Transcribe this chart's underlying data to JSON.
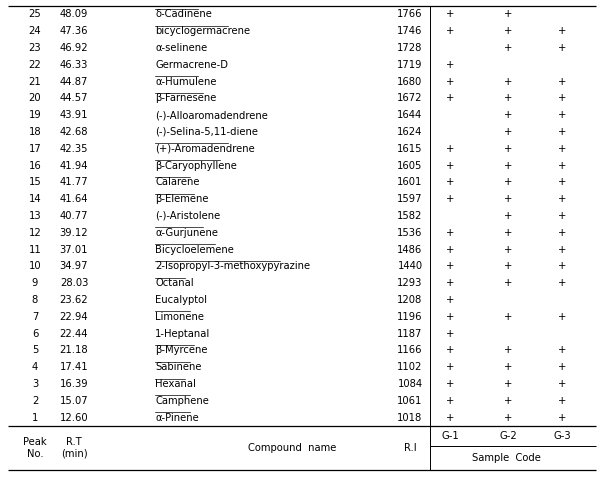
{
  "sample_code_header": "Sample  Code",
  "rows": [
    [
      1,
      "12.60",
      "α-Pinene",
      "1018",
      "+",
      "+",
      "+"
    ],
    [
      2,
      "15.07",
      "Camphene",
      "1061",
      "+",
      "+",
      "+"
    ],
    [
      3,
      "16.39",
      "Hexanal",
      "1084",
      "+",
      "+",
      "+"
    ],
    [
      4,
      "17.41",
      "Sabinene",
      "1102",
      "+",
      "+",
      "+"
    ],
    [
      5,
      "21.18",
      "β-Myrcene",
      "1166",
      "+",
      "+",
      "+"
    ],
    [
      6,
      "22.44",
      "1-Heptanal",
      "1187",
      "+",
      "",
      ""
    ],
    [
      7,
      "22.94",
      "Limonene",
      "1196",
      "+",
      "+",
      "+"
    ],
    [
      8,
      "23.62",
      "Eucalyptol",
      "1208",
      "+",
      "",
      ""
    ],
    [
      9,
      "28.03",
      "Octanal",
      "1293",
      "+",
      "+",
      "+"
    ],
    [
      10,
      "34.97",
      "2-Isopropyl-3-methoxypyrazine",
      "1440",
      "+",
      "+",
      "+"
    ],
    [
      11,
      "37.01",
      "Bicycloelemene",
      "1486",
      "+",
      "+",
      "+"
    ],
    [
      12,
      "39.12",
      "α-Gurjunene",
      "1536",
      "+",
      "+",
      "+"
    ],
    [
      13,
      "40.77",
      "(-)-Aristolene",
      "1582",
      "",
      "+",
      "+"
    ],
    [
      14,
      "41.64",
      "β-Elemene",
      "1597",
      "+",
      "+",
      "+"
    ],
    [
      15,
      "41.77",
      "Calarene",
      "1601",
      "+",
      "+",
      "+"
    ],
    [
      16,
      "41.94",
      "β-Caryophyllene",
      "1605",
      "+",
      "+",
      "+"
    ],
    [
      17,
      "42.35",
      "(+)-Aromadendrene",
      "1615",
      "+",
      "+",
      "+"
    ],
    [
      18,
      "42.68",
      "(-)-Selina-5,11-diene",
      "1624",
      "",
      "+",
      "+"
    ],
    [
      19,
      "43.91",
      "(-)-Alloaromadendrene",
      "1644",
      "",
      "+",
      "+"
    ],
    [
      20,
      "44.57",
      "β-Farnesene",
      "1672",
      "+",
      "+",
      "+"
    ],
    [
      21,
      "44.87",
      "α-Humulene",
      "1680",
      "+",
      "+",
      "+"
    ],
    [
      22,
      "46.33",
      "Germacrene-D",
      "1719",
      "+",
      "",
      ""
    ],
    [
      23,
      "46.92",
      "α-selinene",
      "1728",
      "",
      "+",
      "+"
    ],
    [
      24,
      "47.36",
      "bicyclogermacrene",
      "1746",
      "+",
      "+",
      "+"
    ],
    [
      25,
      "48.09",
      "δ-Cadinene",
      "1766",
      "+",
      "+",
      ""
    ]
  ],
  "underlined_compounds": [
    "α-Pinene",
    "Camphene",
    "Hexanal",
    "Sabinene",
    "β-Myrcene",
    "Limonene",
    "Octanal",
    "2-Isopropyl-3-methoxypyrazine",
    "Bicycloelemene",
    "α-Gurjunene",
    "β-Elemene",
    "Calarene",
    "β-Caryophyllene",
    "(+)-Aromadendrene",
    "β-Farnesene",
    "α-Humulene",
    "bicyclogermacrene",
    "δ-Cadinene"
  ],
  "figsize": [
    6.02,
    4.84
  ],
  "dpi": 100,
  "font_size": 7.2,
  "bg_color": "#ffffff",
  "text_color": "#000000"
}
